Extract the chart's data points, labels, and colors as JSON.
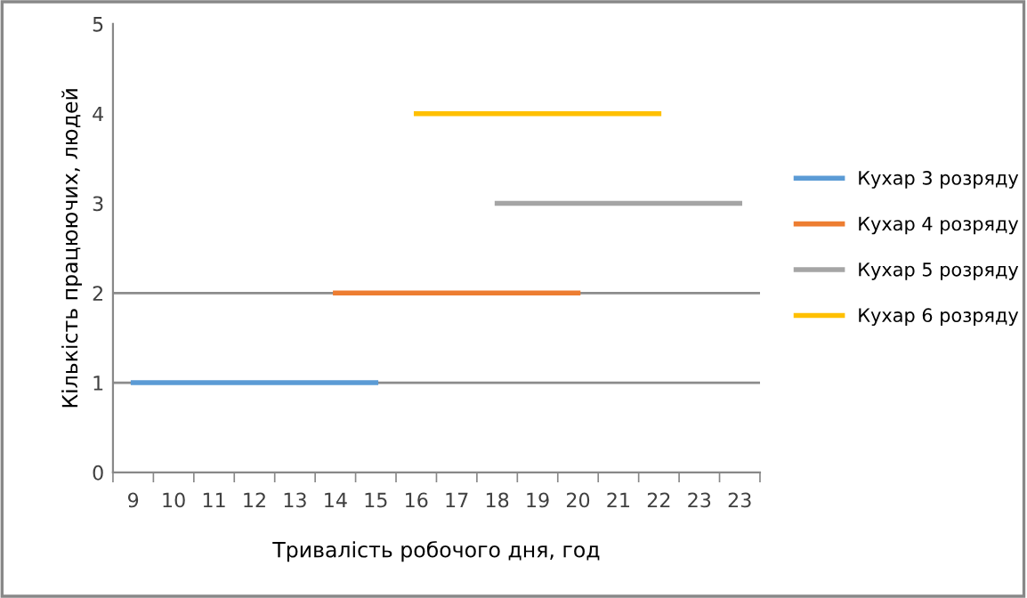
{
  "chart_data": {
    "type": "line",
    "xlabel": "Тривалість робочого дня, год",
    "ylabel": "Кількість працюючих, людей",
    "categories": [
      "9",
      "10",
      "11",
      "12",
      "13",
      "14",
      "15",
      "16",
      "17",
      "18",
      "19",
      "20",
      "21",
      "22",
      "23",
      "23"
    ],
    "series": [
      {
        "name": "Кухар 3 розряду",
        "color": "#5b9bd5",
        "values": [
          1,
          1,
          1,
          1,
          1,
          1,
          1,
          null,
          null,
          null,
          null,
          null,
          null,
          null,
          null,
          null
        ]
      },
      {
        "name": "Кухар 4 розряду",
        "color": "#ed7d31",
        "values": [
          null,
          null,
          null,
          null,
          null,
          2,
          2,
          2,
          2,
          2,
          2,
          2,
          null,
          null,
          null,
          null
        ]
      },
      {
        "name": "Кухар 5 розряду",
        "color": "#a5a5a5",
        "values": [
          null,
          null,
          null,
          null,
          null,
          null,
          null,
          null,
          null,
          3,
          3,
          3,
          3,
          3,
          3,
          3
        ]
      },
      {
        "name": "Кухар 6 розряду",
        "color": "#ffc000",
        "values": [
          null,
          null,
          null,
          null,
          null,
          null,
          null,
          4,
          4,
          4,
          4,
          4,
          4,
          4,
          null,
          null
        ]
      }
    ],
    "ylim": [
      0,
      5
    ],
    "yticks": [
      0,
      1,
      2,
      3,
      4,
      5
    ],
    "ref_lines": [
      {
        "axis": "y",
        "value": 1,
        "color": "#8c8c8c"
      },
      {
        "axis": "y",
        "value": 2,
        "color": "#8c8c8c"
      }
    ],
    "legend": "right",
    "marker": "none",
    "line_style": "solid"
  }
}
